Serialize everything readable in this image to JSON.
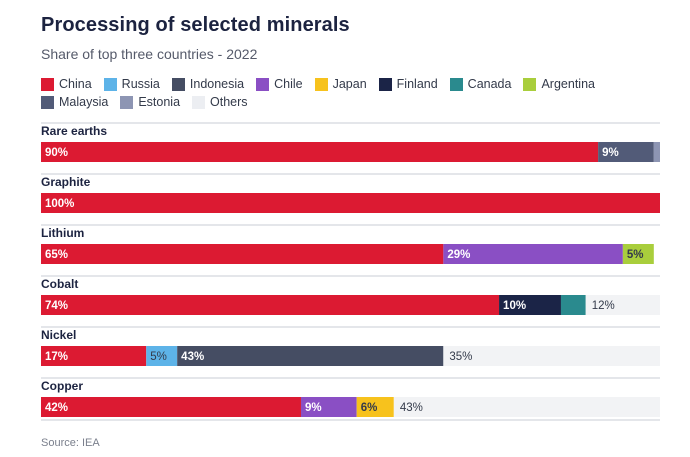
{
  "chart_data": {
    "type": "bar",
    "orientation": "horizontal-stacked",
    "title": "Processing of selected minerals",
    "subtitle": "Share of top three countries - 2022",
    "source": "Source: IEA",
    "xlim": [
      0,
      100
    ],
    "legend": [
      {
        "name": "China",
        "color": "#dc1a32"
      },
      {
        "name": "Russia",
        "color": "#5db3e8"
      },
      {
        "name": "Indonesia",
        "color": "#454d63"
      },
      {
        "name": "Chile",
        "color": "#8a4fc4"
      },
      {
        "name": "Japan",
        "color": "#f7c21d"
      },
      {
        "name": "Finland",
        "color": "#1b2447"
      },
      {
        "name": "Canada",
        "color": "#2a8a8e"
      },
      {
        "name": "Argentina",
        "color": "#a9ce3c"
      },
      {
        "name": "Malaysia",
        "color": "#525b78"
      },
      {
        "name": "Estonia",
        "color": "#8d95b3"
      },
      {
        "name": "Others",
        "color": "#f2f3f5"
      }
    ],
    "categories": [
      "Rare earths",
      "Graphite",
      "Lithium",
      "Cobalt",
      "Nickel",
      "Copper"
    ],
    "bars": [
      {
        "mineral": "Rare earths",
        "segments": [
          {
            "country": "China",
            "value": 90,
            "label": "90%"
          },
          {
            "country": "Malaysia",
            "value": 9,
            "label": "9%"
          },
          {
            "country": "Estonia",
            "value": 1,
            "label": ""
          }
        ]
      },
      {
        "mineral": "Graphite",
        "segments": [
          {
            "country": "China",
            "value": 100,
            "label": "100%"
          }
        ]
      },
      {
        "mineral": "Lithium",
        "segments": [
          {
            "country": "China",
            "value": 65,
            "label": "65%"
          },
          {
            "country": "Chile",
            "value": 29,
            "label": "29%"
          },
          {
            "country": "Argentina",
            "value": 5,
            "label": "5%"
          }
        ]
      },
      {
        "mineral": "Cobalt",
        "segments": [
          {
            "country": "China",
            "value": 74,
            "label": "74%"
          },
          {
            "country": "Finland",
            "value": 10,
            "label": "10%"
          },
          {
            "country": "Canada",
            "value": 4,
            "label": ""
          },
          {
            "country": "Others",
            "value": 12,
            "label": "12%"
          }
        ]
      },
      {
        "mineral": "Nickel",
        "segments": [
          {
            "country": "China",
            "value": 17,
            "label": "17%"
          },
          {
            "country": "Russia",
            "value": 5,
            "label": "5%"
          },
          {
            "country": "Indonesia",
            "value": 43,
            "label": "43%"
          },
          {
            "country": "Others",
            "value": 35,
            "label": "35%"
          }
        ]
      },
      {
        "mineral": "Copper",
        "segments": [
          {
            "country": "China",
            "value": 42,
            "label": "42%"
          },
          {
            "country": "Chile",
            "value": 9,
            "label": "9%"
          },
          {
            "country": "Japan",
            "value": 6,
            "label": "6%"
          },
          {
            "country": "Others",
            "value": 43,
            "label": "43%"
          }
        ]
      }
    ]
  }
}
